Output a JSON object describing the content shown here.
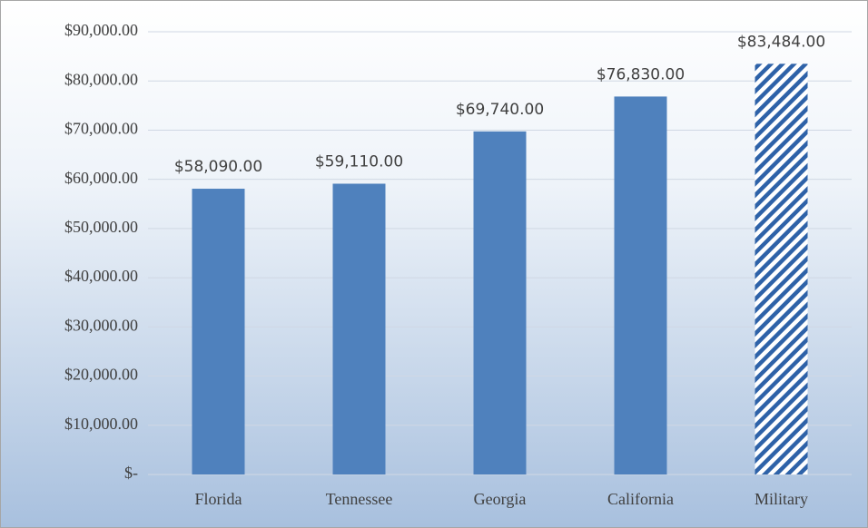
{
  "chart_data": {
    "type": "bar",
    "categories": [
      "Florida",
      "Tennessee",
      "Georgia",
      "California",
      "Military"
    ],
    "values": [
      58090,
      59110,
      69740,
      76830,
      83484
    ],
    "value_labels": [
      "$58,090.00",
      "$59,110.00",
      "$69,740.00",
      "$76,830.00",
      "$83,484.00"
    ],
    "color": "#4f81bd",
    "hatch": [
      false,
      false,
      false,
      false,
      true
    ],
    "ylim": [
      0,
      90000
    ],
    "yticks": [
      {
        "value": 0,
        "label": "$-"
      },
      {
        "value": 10000,
        "label": "$10,000.00"
      },
      {
        "value": 20000,
        "label": "$20,000.00"
      },
      {
        "value": 30000,
        "label": "$30,000.00"
      },
      {
        "value": 40000,
        "label": "$40,000.00"
      },
      {
        "value": 50000,
        "label": "$50,000.00"
      },
      {
        "value": 60000,
        "label": "$60,000.00"
      },
      {
        "value": 70000,
        "label": "$70,000.00"
      },
      {
        "value": 80000,
        "label": "$80,000.00"
      },
      {
        "value": 90000,
        "label": "$90,000.00"
      }
    ],
    "grid": true
  }
}
